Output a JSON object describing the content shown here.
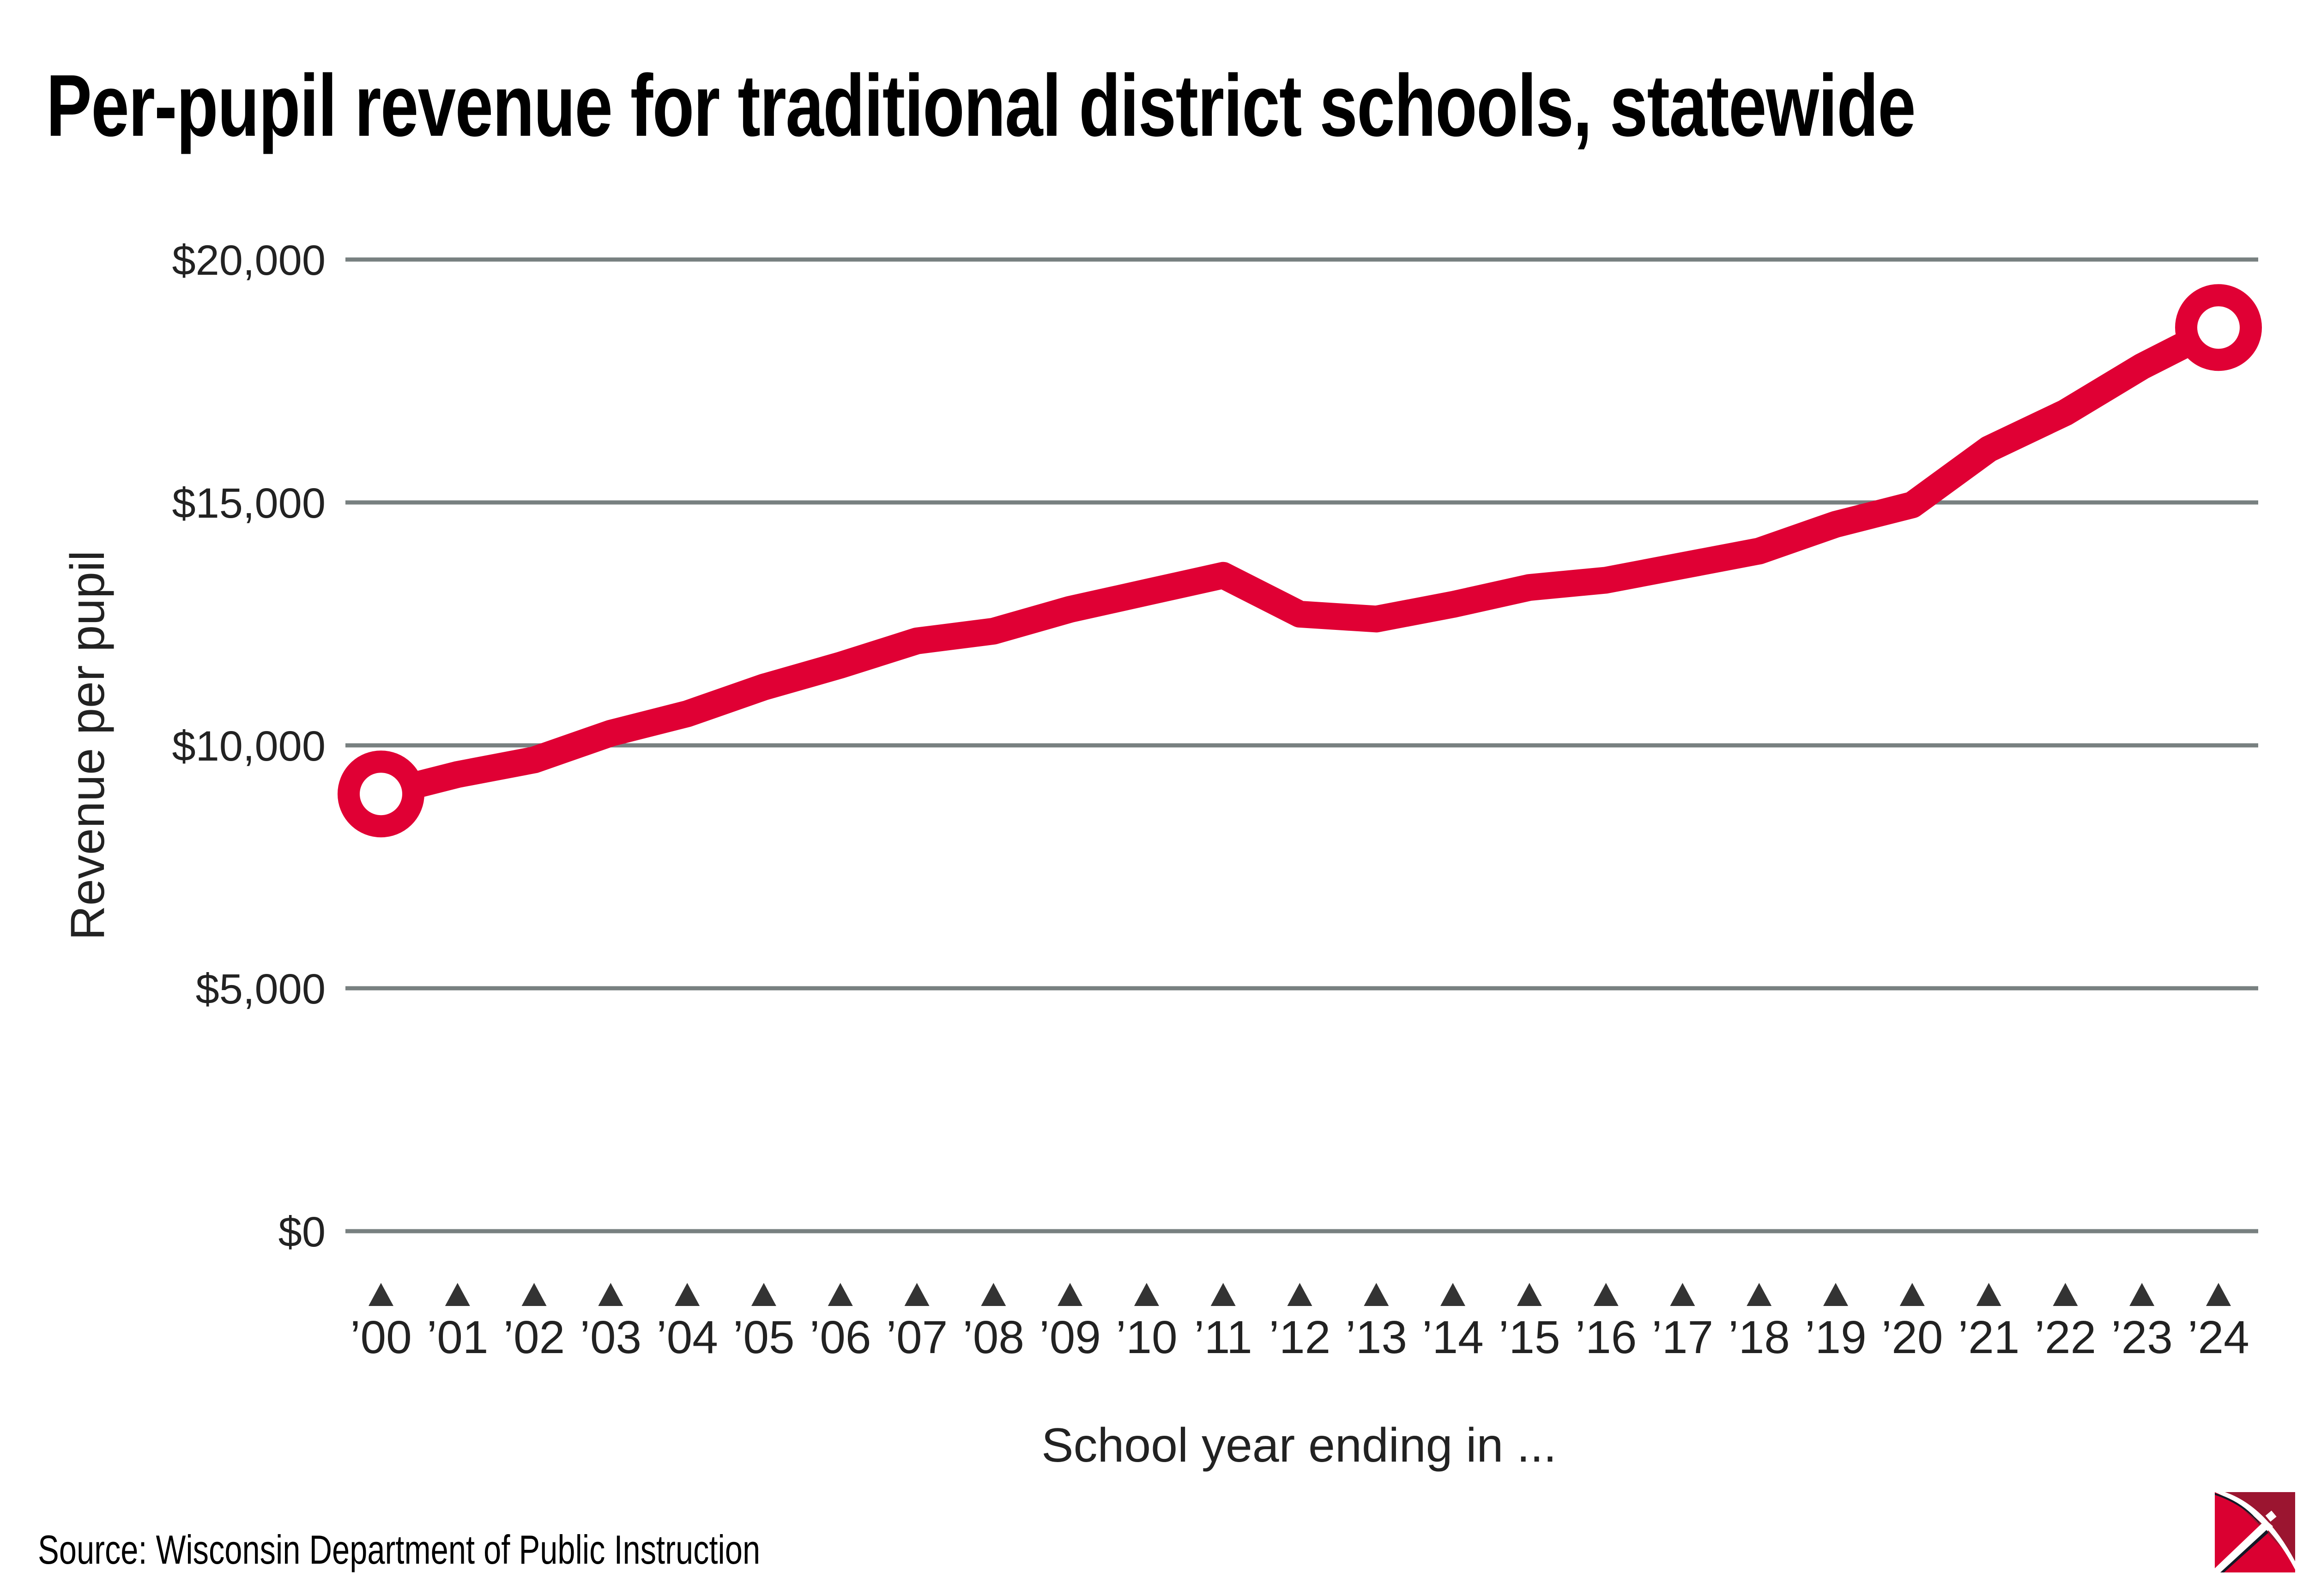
{
  "title": "Per-pupil revenue for traditional district schools, statewide",
  "source": "Source: Wisconsin Department of Public Instruction",
  "logo_icon": "pickaxe-logo-icon",
  "colors": {
    "line": "#E00034",
    "grid": "#788080",
    "tick_marker": "#333333",
    "text": "#222222",
    "logo_light": "#DA0031",
    "logo_dark": "#9B1530",
    "logo_shadow": "#121826"
  },
  "chart_data": {
    "type": "line",
    "title": "Per-pupil revenue for traditional district schools, statewide",
    "xlabel": "School year ending in ...",
    "ylabel": "Revenue per pupil",
    "ylim": [
      0,
      20000
    ],
    "yticks": [
      0,
      5000,
      10000,
      15000,
      20000
    ],
    "ytick_labels": [
      "$0",
      "$5,000",
      "$10,000",
      "$15,000",
      "$20,000"
    ],
    "grid": true,
    "categories": [
      "’00",
      "’01",
      "’02",
      "’03",
      "’04",
      "’05",
      "’06",
      "’07",
      "’08",
      "’09",
      "’10",
      "’11",
      "’12",
      "’13",
      "’14",
      "’15",
      "’16",
      "’17",
      "’18",
      "’19",
      "’20",
      "’21",
      "’22",
      "’23",
      "’24"
    ],
    "series": [
      {
        "name": "Revenue per pupil",
        "values": [
          9000,
          9400,
          9700,
          10250,
          10650,
          11200,
          11650,
          12150,
          12350,
          12800,
          13150,
          13500,
          12700,
          12600,
          12900,
          13250,
          13400,
          13700,
          14000,
          14550,
          14950,
          16100,
          16850,
          17800,
          18600
        ]
      }
    ],
    "endpoint_markers": [
      "first",
      "last"
    ]
  }
}
